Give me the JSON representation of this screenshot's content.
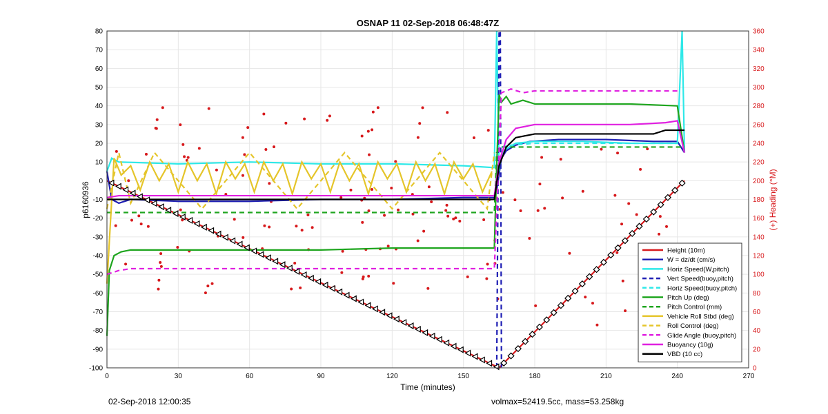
{
  "footer": {
    "timestamp": "02-Sep-2018 12:00:35",
    "vol_mass": "volmax=52419.5cc, mass=53.258kg"
  },
  "chart_data": {
    "type": "line",
    "title": "OSNAP 11 02-Sep-2018 06:48:47Z",
    "xlabel": "Time (minutes)",
    "ylabel_left": "p6160936",
    "ylabel_right": "(+) Heading (°M)",
    "xlim": [
      0,
      270
    ],
    "ylim_left": [
      -100,
      80
    ],
    "ylim_right": [
      0,
      360
    ],
    "xticks": [
      0,
      30,
      60,
      90,
      120,
      150,
      180,
      210,
      240,
      270
    ],
    "yticks_left": [
      -100,
      -90,
      -80,
      -70,
      -60,
      -50,
      -40,
      -30,
      -20,
      -10,
      0,
      10,
      20,
      30,
      40,
      50,
      60,
      70,
      80
    ],
    "yticks_right": [
      0,
      20,
      40,
      60,
      80,
      100,
      120,
      140,
      160,
      180,
      200,
      220,
      240,
      260,
      280,
      300,
      320,
      340,
      360
    ],
    "grid": true,
    "legend_position": "bottom-right",
    "colors": {
      "red": "#d7191c",
      "blue": "#1f1fb4",
      "cyan": "#2ee8e8",
      "green": "#1ea51e",
      "yellow": "#e5c52a",
      "magenta": "#e020e0",
      "black": "#000000"
    },
    "series": [
      {
        "name": "Height (10m)",
        "color": "#d7191c",
        "dash": false,
        "x": [
          0,
          165,
          243
        ],
        "y": [
          0,
          -100,
          0
        ]
      },
      {
        "name": "W = dz/dt (cm/s)",
        "color": "#1f1fb4",
        "dash": false,
        "x": [
          0,
          2,
          5,
          10,
          30,
          60,
          90,
          120,
          150,
          163,
          164,
          166,
          168,
          172,
          178,
          190,
          210,
          230,
          240,
          243
        ],
        "y": [
          5,
          -10,
          -12,
          -10,
          -11,
          -11,
          -10,
          -10,
          -9,
          -9,
          -5,
          12,
          16,
          19,
          21,
          22,
          22,
          21,
          21,
          15
        ]
      },
      {
        "name": "Horiz Speed(W,pitch)",
        "color": "#2ee8e8",
        "dash": false,
        "x": [
          0,
          2,
          5,
          30,
          60,
          90,
          120,
          150,
          163,
          164,
          165,
          166,
          168,
          172,
          180,
          200,
          220,
          240,
          242,
          243
        ],
        "y": [
          5,
          12,
          10,
          9,
          10,
          9,
          9,
          8,
          7,
          80,
          5,
          14,
          17,
          20,
          21,
          21,
          20,
          20,
          80,
          15
        ]
      },
      {
        "name": "Vert Speed(buoy,pitch)",
        "color": "#1f1fb4",
        "dash": true,
        "x": [
          164,
          165,
          165.5,
          166
        ],
        "y": [
          -100,
          80,
          80,
          -100
        ]
      },
      {
        "name": "Horiz Speed(buoy,pitch)",
        "color": "#2ee8e8",
        "dash": true,
        "x": [
          166,
          170,
          180,
          200,
          220,
          240
        ],
        "y": [
          18,
          19,
          20,
          20,
          20,
          20
        ]
      },
      {
        "name": "Pitch Up (deg)",
        "color": "#1ea51e",
        "dash": false,
        "x": [
          0,
          1,
          3,
          6,
          10,
          30,
          60,
          90,
          120,
          150,
          163,
          164,
          165,
          166,
          168,
          170,
          175,
          180,
          200,
          220,
          240,
          243
        ],
        "y": [
          -83,
          -48,
          -40,
          -38,
          -37,
          -37,
          -37,
          -37,
          -36,
          -36,
          -36,
          8,
          46,
          42,
          45,
          41,
          43,
          41,
          41,
          41,
          40,
          15
        ]
      },
      {
        "name": "Pitch Control (mm)",
        "color": "#1ea51e",
        "dash": true,
        "x": [
          0,
          163,
          164,
          166,
          243
        ],
        "y": [
          -17,
          -17,
          15,
          18,
          18
        ]
      },
      {
        "name": "Vehicle Roll Stbd (deg)",
        "color": "#e5c52a",
        "dash": false,
        "x": [
          0,
          3,
          6,
          10,
          14,
          18,
          22,
          26,
          30,
          34,
          38,
          42,
          46,
          50,
          54,
          58,
          62,
          66,
          70,
          74,
          78,
          82,
          86,
          90,
          94,
          98,
          102,
          106,
          110,
          114,
          118,
          122,
          126,
          130,
          134,
          138,
          142,
          146,
          150,
          154,
          158,
          162
        ],
        "y": [
          -55,
          12,
          3,
          8,
          -5,
          10,
          0,
          9,
          -6,
          10,
          0,
          9,
          -7,
          10,
          1,
          9,
          -6,
          10,
          0,
          9,
          -7,
          10,
          1,
          9,
          -6,
          10,
          0,
          9,
          -7,
          10,
          1,
          9,
          -6,
          10,
          0,
          9,
          -7,
          10,
          1,
          9,
          -6,
          5
        ]
      },
      {
        "name": "Roll Control (deg)",
        "color": "#e5c52a",
        "dash": true,
        "x": [
          0,
          5,
          10,
          20,
          40,
          60,
          80,
          100,
          120,
          140,
          160,
          163
        ],
        "y": [
          -15,
          15,
          -12,
          15,
          -15,
          15,
          -15,
          15,
          -15,
          15,
          -15,
          15
        ]
      },
      {
        "name": "Glide Angle (buoy,pitch)",
        "color": "#e020e0",
        "dash": true,
        "x": [
          0,
          5,
          10,
          30,
          60,
          90,
          120,
          150,
          163,
          166,
          170,
          175,
          180,
          200,
          220,
          240
        ],
        "y": [
          -50,
          -48,
          -47,
          -47,
          -47,
          -47,
          -47,
          -47,
          -47,
          47,
          49,
          47,
          48,
          48,
          48,
          48
        ]
      },
      {
        "name": "Buoyancy (10g)",
        "color": "#e020e0",
        "dash": false,
        "x": [
          0,
          5,
          10,
          30,
          60,
          90,
          120,
          150,
          163,
          165,
          168,
          172,
          180,
          200,
          220,
          235,
          240,
          243
        ],
        "y": [
          -9,
          -8,
          -8,
          -8,
          -8,
          -8,
          -8,
          -8,
          -8,
          10,
          22,
          28,
          30,
          30,
          30,
          31,
          32,
          15
        ]
      },
      {
        "name": "VBD (10 cc)",
        "color": "#000000",
        "dash": false,
        "x": [
          0,
          5,
          10,
          30,
          60,
          90,
          120,
          150,
          163,
          165,
          168,
          172,
          180,
          200,
          230,
          235,
          243
        ],
        "y": [
          -10,
          -10,
          -10,
          -10,
          -10,
          -10,
          -10,
          -10,
          -10,
          8,
          18,
          23,
          25,
          25,
          25,
          27,
          27
        ]
      }
    ]
  }
}
